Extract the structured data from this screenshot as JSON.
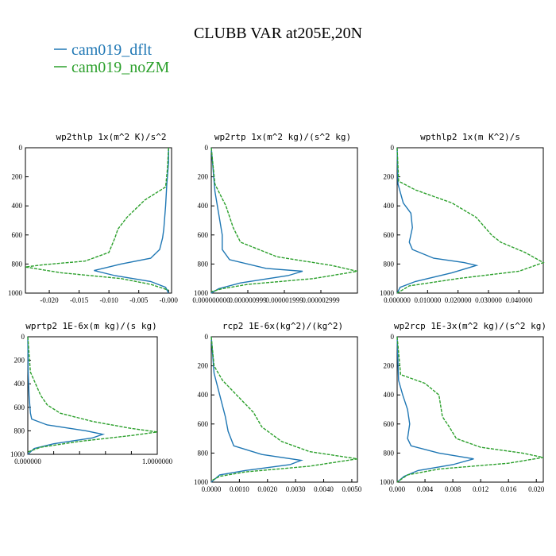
{
  "figure": {
    "title": "CLUBB VAR at205E,20N",
    "legend": [
      {
        "label": "cam019_dflt",
        "color": "#1f77b4"
      },
      {
        "label": "cam019_noZM",
        "color": "#2ca02c"
      }
    ]
  },
  "chart_data": [
    {
      "type": "line",
      "title": "wp2thlp  1x(m^2 K)/s^2",
      "ylim": [
        1000,
        0
      ],
      "xlim": [
        -0.024,
        0.0005
      ],
      "xticks": [
        "-0.020",
        "-0.015",
        "-0.010",
        "-0.005",
        "-0.000"
      ],
      "xtick_values": [
        -0.02,
        -0.015,
        -0.01,
        -0.005,
        0.0
      ],
      "yticks": [
        "0",
        "200",
        "400",
        "600",
        "800",
        "1000"
      ],
      "series": [
        {
          "name": "cam019_dflt",
          "color": "#1f77b4",
          "points": [
            [
              0.0,
              0
            ],
            [
              0.0,
              100
            ],
            [
              -0.0003,
              250
            ],
            [
              -0.0005,
              400
            ],
            [
              -0.0008,
              560
            ],
            [
              -0.001,
              620
            ],
            [
              -0.0015,
              700
            ],
            [
              -0.003,
              760
            ],
            [
              -0.008,
              800
            ],
            [
              -0.011,
              830
            ],
            [
              -0.0125,
              845
            ],
            [
              -0.009,
              880
            ],
            [
              -0.003,
              920
            ],
            [
              -0.0005,
              960
            ],
            [
              0.0,
              1000
            ]
          ]
        },
        {
          "name": "cam019_noZM",
          "color": "#2ca02c",
          "points": [
            [
              0.0,
              0
            ],
            [
              -0.0002,
              150
            ],
            [
              -0.0005,
              270
            ],
            [
              -0.004,
              360
            ],
            [
              -0.007,
              480
            ],
            [
              -0.0085,
              560
            ],
            [
              -0.009,
              620
            ],
            [
              -0.01,
              720
            ],
            [
              -0.014,
              780
            ],
            [
              -0.021,
              805
            ],
            [
              -0.024,
              820
            ],
            [
              -0.018,
              860
            ],
            [
              -0.008,
              900
            ],
            [
              -0.003,
              940
            ],
            [
              0.0,
              980
            ]
          ]
        }
      ]
    },
    {
      "type": "line",
      "title": "wp2rtp  1x(m^2 kg)/(s^2 kg)",
      "ylim": [
        1000,
        0
      ],
      "xlim": [
        0,
        4e-06
      ],
      "xticks": [
        "0.000000000",
        "0.000000999",
        "0.000001999",
        "0.000002999"
      ],
      "xtick_values": [
        0,
        1e-06,
        2e-06,
        3e-06
      ],
      "yticks": [
        "0",
        "200",
        "400",
        "600",
        "800",
        "1000"
      ],
      "series": [
        {
          "name": "cam019_dflt",
          "color": "#1f77b4",
          "points": [
            [
              0,
              0
            ],
            [
              1e-07,
              300
            ],
            [
              2e-07,
              450
            ],
            [
              3e-07,
              600
            ],
            [
              3e-07,
              700
            ],
            [
              5e-07,
              770
            ],
            [
              1.5e-06,
              830
            ],
            [
              2.5e-06,
              850
            ],
            [
              2.1e-06,
              880
            ],
            [
              8e-07,
              930
            ],
            [
              2e-07,
              970
            ],
            [
              0,
              1000
            ]
          ]
        },
        {
          "name": "cam019_noZM",
          "color": "#2ca02c",
          "points": [
            [
              0,
              0
            ],
            [
              1e-07,
              250
            ],
            [
              4e-07,
              400
            ],
            [
              6e-07,
              550
            ],
            [
              8e-07,
              650
            ],
            [
              1.8e-06,
              750
            ],
            [
              3.3e-06,
              810
            ],
            [
              4e-06,
              850
            ],
            [
              2.8e-06,
              900
            ],
            [
              1e-06,
              940
            ],
            [
              3e-07,
              970
            ],
            [
              0,
              990
            ]
          ]
        }
      ]
    },
    {
      "type": "line",
      "title": "wpthlp2  1x(m K^2)/s",
      "ylim": [
        1000,
        0
      ],
      "xlim": [
        0,
        0.048
      ],
      "xticks": [
        "0.000000",
        "0.010000",
        "0.020000",
        "0.030000",
        "0.040000"
      ],
      "xtick_values": [
        0,
        0.01,
        0.02,
        0.03,
        0.04
      ],
      "yticks": [
        "0",
        "200",
        "400",
        "600",
        "800",
        "1000"
      ],
      "series": [
        {
          "name": "cam019_dflt",
          "color": "#1f77b4",
          "points": [
            [
              0,
              0
            ],
            [
              0.0003,
              250
            ],
            [
              0.002,
              380
            ],
            [
              0.0045,
              450
            ],
            [
              0.005,
              550
            ],
            [
              0.004,
              650
            ],
            [
              0.005,
              700
            ],
            [
              0.012,
              760
            ],
            [
              0.022,
              790
            ],
            [
              0.026,
              810
            ],
            [
              0.018,
              860
            ],
            [
              0.006,
              920
            ],
            [
              0.001,
              960
            ],
            [
              0,
              1000
            ]
          ]
        },
        {
          "name": "cam019_noZM",
          "color": "#2ca02c",
          "points": [
            [
              0,
              0
            ],
            [
              0.0005,
              230
            ],
            [
              0.006,
              290
            ],
            [
              0.018,
              380
            ],
            [
              0.026,
              480
            ],
            [
              0.031,
              600
            ],
            [
              0.034,
              650
            ],
            [
              0.042,
              720
            ],
            [
              0.048,
              790
            ],
            [
              0.04,
              850
            ],
            [
              0.02,
              900
            ],
            [
              0.004,
              950
            ],
            [
              0,
              1000
            ]
          ]
        }
      ]
    },
    {
      "type": "line",
      "title": "wprtp2  1E-6x(m kg)/(s kg)",
      "ylim": [
        1000,
        0
      ],
      "xlim": [
        0,
        1
      ],
      "xticks": [
        "0.000000",
        "",
        "",
        "",
        "",
        "1.0000000"
      ],
      "xtick_values": [
        0,
        0.2,
        0.4,
        0.6,
        0.8,
        1.0
      ],
      "yticks": [
        "0",
        "200",
        "400",
        "600",
        "800",
        "1000"
      ],
      "series": [
        {
          "name": "cam019_dflt",
          "color": "#1f77b4",
          "points": [
            [
              0,
              0
            ],
            [
              0.003,
              300
            ],
            [
              0.01,
              500
            ],
            [
              0.02,
              650
            ],
            [
              0.03,
              700
            ],
            [
              0.15,
              750
            ],
            [
              0.45,
              800
            ],
            [
              0.58,
              830
            ],
            [
              0.5,
              860
            ],
            [
              0.2,
              910
            ],
            [
              0.05,
              950
            ],
            [
              0,
              1000
            ]
          ]
        },
        {
          "name": "cam019_noZM",
          "color": "#2ca02c",
          "points": [
            [
              0,
              0
            ],
            [
              0.02,
              300
            ],
            [
              0.06,
              400
            ],
            [
              0.1,
              500
            ],
            [
              0.15,
              580
            ],
            [
              0.25,
              650
            ],
            [
              0.5,
              720
            ],
            [
              0.8,
              780
            ],
            [
              1.0,
              810
            ],
            [
              0.8,
              840
            ],
            [
              0.4,
              890
            ],
            [
              0.1,
              940
            ],
            [
              0,
              980
            ]
          ]
        }
      ]
    },
    {
      "type": "line",
      "title": "rcp2  1E-6x(kg^2)/(kg^2)",
      "ylim": [
        1000,
        0
      ],
      "xlim": [
        0,
        0.0052
      ],
      "xticks": [
        "0.0000",
        "0.0010",
        "0.0020",
        "0.0030",
        "0.0040",
        "0.0050"
      ],
      "xtick_values": [
        0,
        0.001,
        0.002,
        0.003,
        0.004,
        0.005
      ],
      "yticks": [
        "0",
        "200",
        "400",
        "600",
        "800",
        "1000"
      ],
      "series": [
        {
          "name": "cam019_dflt",
          "color": "#1f77b4",
          "points": [
            [
              0,
              0
            ],
            [
              0.0001,
              250
            ],
            [
              0.0003,
              400
            ],
            [
              0.0005,
              550
            ],
            [
              0.0006,
              650
            ],
            [
              0.0008,
              750
            ],
            [
              0.0018,
              810
            ],
            [
              0.0032,
              850
            ],
            [
              0.0028,
              880
            ],
            [
              0.0012,
              920
            ],
            [
              0.0003,
              950
            ],
            [
              0,
              1000
            ]
          ]
        },
        {
          "name": "cam019_noZM",
          "color": "#2ca02c",
          "points": [
            [
              0,
              0
            ],
            [
              0.0001,
              200
            ],
            [
              0.0004,
              300
            ],
            [
              0.0009,
              400
            ],
            [
              0.0015,
              520
            ],
            [
              0.0018,
              620
            ],
            [
              0.0025,
              720
            ],
            [
              0.0035,
              790
            ],
            [
              0.0052,
              840
            ],
            [
              0.0035,
              890
            ],
            [
              0.0012,
              930
            ],
            [
              0.0003,
              960
            ],
            [
              0,
              990
            ]
          ]
        }
      ]
    },
    {
      "type": "line",
      "title": "wp2rcp  1E-3x(m^2 kg)/(s^2 kg)",
      "ylim": [
        1000,
        0
      ],
      "xlim": [
        0,
        0.021
      ],
      "xticks": [
        "0.000",
        "0.004",
        "0.008",
        "0.012",
        "0.016",
        "0.020"
      ],
      "xtick_values": [
        0,
        0.004,
        0.008,
        0.012,
        0.016,
        0.02
      ],
      "yticks": [
        "0",
        "200",
        "400",
        "600",
        "800",
        "1000"
      ],
      "series": [
        {
          "name": "cam019_dflt",
          "color": "#1f77b4",
          "points": [
            [
              0,
              0
            ],
            [
              0.0002,
              300
            ],
            [
              0.0008,
              400
            ],
            [
              0.0015,
              500
            ],
            [
              0.0018,
              600
            ],
            [
              0.0015,
              700
            ],
            [
              0.002,
              750
            ],
            [
              0.006,
              800
            ],
            [
              0.011,
              840
            ],
            [
              0.008,
              880
            ],
            [
              0.003,
              920
            ],
            [
              0.001,
              960
            ],
            [
              0,
              1000
            ]
          ]
        },
        {
          "name": "cam019_noZM",
          "color": "#2ca02c",
          "points": [
            [
              0,
              0
            ],
            [
              0.0005,
              260
            ],
            [
              0.004,
              320
            ],
            [
              0.006,
              400
            ],
            [
              0.0065,
              550
            ],
            [
              0.0075,
              620
            ],
            [
              0.0085,
              700
            ],
            [
              0.012,
              760
            ],
            [
              0.018,
              800
            ],
            [
              0.021,
              830
            ],
            [
              0.016,
              870
            ],
            [
              0.006,
              910
            ],
            [
              0.0015,
              950
            ],
            [
              0,
              1000
            ]
          ]
        }
      ]
    }
  ]
}
